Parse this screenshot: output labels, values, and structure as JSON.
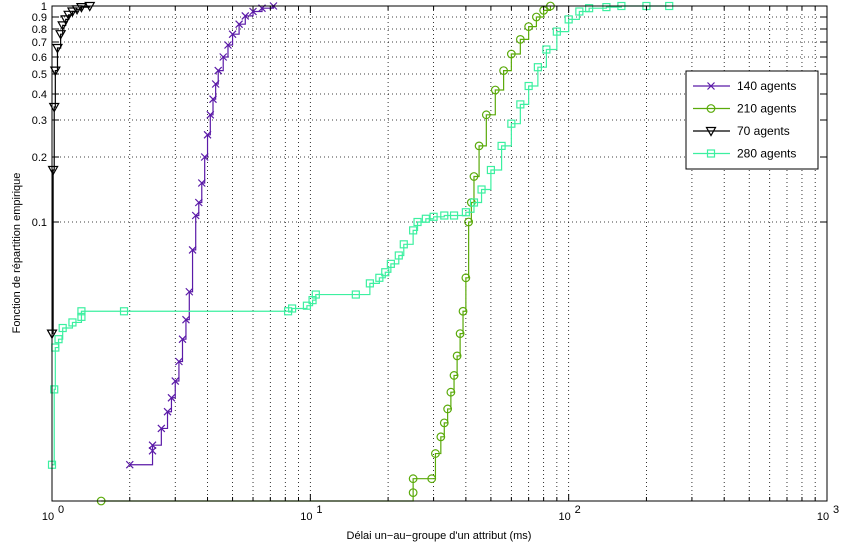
{
  "chart_data": {
    "type": "line",
    "title": "",
    "xlabel": "Délai un−au−groupe d'un attribut (ms)",
    "ylabel": "Fonction de répartition empirique",
    "xscale": "log",
    "xlim": [
      1,
      1000
    ],
    "x_ticks": [
      {
        "value": 1,
        "base": "10",
        "exp": "0"
      },
      {
        "value": 10,
        "base": "10",
        "exp": "1"
      },
      {
        "value": 100,
        "base": "10",
        "exp": "2"
      },
      {
        "value": 1000,
        "base": "10",
        "exp": "3"
      }
    ],
    "y_ticks": [
      {
        "value": 0.1,
        "label": "0.1"
      },
      {
        "value": 0.2,
        "label": "0.2"
      },
      {
        "value": 0.3,
        "label": "0.3"
      },
      {
        "value": 0.4,
        "label": "0.4"
      },
      {
        "value": 0.5,
        "label": "0.5"
      },
      {
        "value": 0.6,
        "label": "0.6"
      },
      {
        "value": 0.7,
        "label": "0.7"
      },
      {
        "value": 0.8,
        "label": "0.8"
      },
      {
        "value": 0.9,
        "label": "0.9"
      },
      {
        "value": 1,
        "label": "1"
      }
    ],
    "grid": true,
    "legend_position": "right",
    "series": [
      {
        "name": "140 agents",
        "color": "#5b1aa8",
        "marker": "x",
        "x": [
          2.0,
          2.45,
          2.45,
          2.65,
          2.8,
          2.9,
          3.0,
          3.1,
          3.2,
          3.3,
          3.4,
          3.5,
          3.6,
          3.7,
          3.8,
          3.9,
          4.0,
          4.1,
          4.2,
          4.3,
          4.4,
          4.6,
          4.8,
          5.0,
          5.3,
          5.6,
          6.0,
          6.5,
          7.2
        ],
        "y": [
          0.013,
          0.018,
          0.02,
          0.026,
          0.032,
          0.037,
          0.043,
          0.05,
          0.058,
          0.065,
          0.075,
          0.09,
          0.11,
          0.13,
          0.16,
          0.2,
          0.26,
          0.32,
          0.38,
          0.45,
          0.52,
          0.6,
          0.68,
          0.76,
          0.84,
          0.91,
          0.95,
          0.98,
          1.0
        ]
      },
      {
        "name": "210 agents",
        "color": "#5aaa0a",
        "marker": "circle",
        "x": [
          1.55,
          25,
          25,
          29.5,
          30.5,
          32,
          33,
          34,
          35,
          36,
          37,
          38,
          39,
          40,
          41,
          42,
          43,
          45,
          48,
          52,
          56,
          60,
          65,
          70,
          75,
          80,
          85
        ],
        "y": [
          0.0,
          0.003,
          0.008,
          0.008,
          0.017,
          0.023,
          0.028,
          0.033,
          0.039,
          0.045,
          0.052,
          0.06,
          0.068,
          0.08,
          0.1,
          0.13,
          0.17,
          0.23,
          0.32,
          0.42,
          0.52,
          0.62,
          0.72,
          0.82,
          0.9,
          0.96,
          1.0
        ]
      },
      {
        "name": "70 agents",
        "color": "#000000",
        "marker": "triangle-down",
        "x": [
          1.0,
          1.01,
          1.02,
          1.03,
          1.05,
          1.08,
          1.1,
          1.13,
          1.16,
          1.2,
          1.25,
          1.3,
          1.4
        ],
        "y": [
          0.06,
          0.18,
          0.35,
          0.52,
          0.66,
          0.76,
          0.83,
          0.88,
          0.92,
          0.95,
          0.97,
          0.99,
          1.0
        ]
      },
      {
        "name": "280 agents",
        "color": "#3cf0a0",
        "marker": "square",
        "x": [
          1.0,
          1.02,
          1.03,
          1.06,
          1.1,
          1.2,
          1.3,
          1.3,
          1.9,
          8.2,
          8.5,
          9.7,
          10.2,
          10.5,
          15,
          17,
          18.5,
          19.5,
          20.5,
          22,
          23,
          25,
          26,
          28,
          30,
          33,
          36,
          40,
          43,
          46,
          50,
          55,
          60,
          65,
          70,
          76,
          82,
          90,
          100,
          110,
          120,
          140,
          160,
          200,
          245
        ],
        "y": [
          0.013,
          0.04,
          0.055,
          0.058,
          0.062,
          0.064,
          0.066,
          0.068,
          0.068,
          0.068,
          0.069,
          0.07,
          0.072,
          0.074,
          0.074,
          0.078,
          0.08,
          0.082,
          0.085,
          0.088,
          0.092,
          0.097,
          0.1,
          0.105,
          0.108,
          0.11,
          0.11,
          0.115,
          0.13,
          0.15,
          0.18,
          0.23,
          0.29,
          0.36,
          0.44,
          0.54,
          0.65,
          0.78,
          0.88,
          0.95,
          0.98,
          0.99,
          1.0,
          1.0,
          1.0
        ]
      }
    ]
  }
}
